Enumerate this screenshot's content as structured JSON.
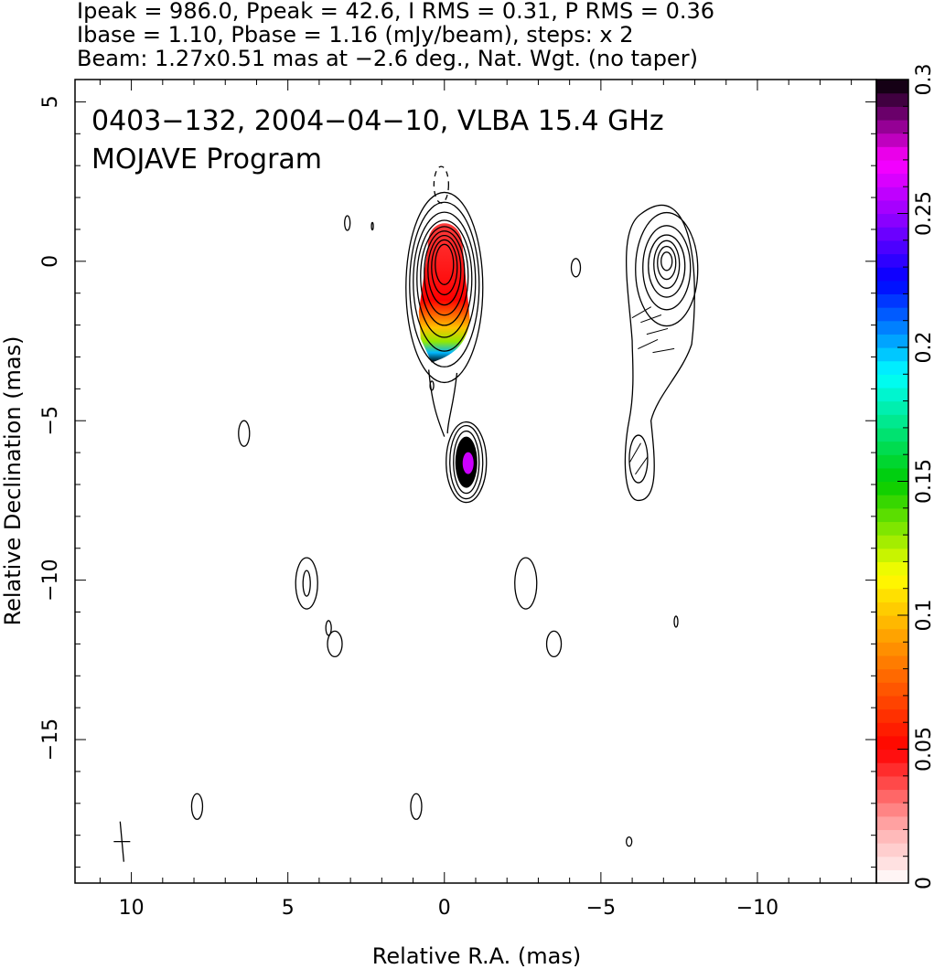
{
  "header": {
    "line1": "Ipeak = 986.0, Ppeak = 42.6, I RMS = 0.31, P RMS = 0.36",
    "line2": "Ibase = 1.10, Pbase = 1.16 (mJy/beam), steps: x 2",
    "line3": "Beam: 1.27x0.51 mas at −2.6 deg., Nat. Wgt. (no taper)"
  },
  "chart_data": [
    {
      "type": "heatmap",
      "panel": "total intensity contours with fractional polarization colour",
      "title_line1": "0403−132, 2004−04−10, VLBA 15.4 GHz",
      "title_line2": "MOJAVE Program",
      "xlabel": "Relative R.A. (mas)",
      "ylabel": "Relative Declination (mas)",
      "xlim": [
        11.8,
        -13.8
      ],
      "ylim": [
        -19.5,
        5.7
      ],
      "x_ticks": [
        10,
        5,
        0,
        -5,
        -10
      ],
      "x_tick_labels": [
        "10",
        "5",
        "0",
        "−5",
        "−10"
      ],
      "y_ticks": [
        5,
        0,
        -5,
        -10,
        -15
      ],
      "y_tick_labels": [
        "5",
        "0",
        "−5",
        "−10",
        "−15"
      ],
      "core_colour_components": [
        {
          "x": 0.0,
          "y": -0.7,
          "value_range": [
            0.02,
            0.12
          ]
        },
        {
          "x": -0.7,
          "y": -6.3,
          "value_range": [
            0.22,
            0.3
          ]
        }
      ],
      "contour_sources": [
        {
          "x": 0.0,
          "y": -1.0
        },
        {
          "x": -7.1,
          "y": -1.5
        },
        {
          "x": -0.7,
          "y": -6.3
        },
        {
          "x": -6.2,
          "y": -6.2
        },
        {
          "x": 4.4,
          "y": -10.1
        },
        {
          "x": -2.6,
          "y": -10.1
        }
      ],
      "beam": {
        "major": 1.27,
        "minor": 0.51,
        "pa_deg": -2.6
      }
    },
    {
      "type": "heatmap",
      "panel": "colour scale",
      "colorbar_range": [
        0,
        0.3
      ],
      "colorbar_ticks": [
        0,
        0.05,
        0.1,
        0.15,
        0.2,
        0.25,
        0.3
      ],
      "colorbar_tick_labels": [
        "0",
        "0.05",
        "0.1",
        "0.15",
        "0.2",
        "0.25",
        "0.3"
      ]
    }
  ],
  "colors": {
    "low": "#ffffff",
    "red": "#ff0000",
    "orange": "#ff9900",
    "yellow": "#ffff00",
    "green": "#00cc00",
    "cyan": "#00ffff",
    "blue": "#0000ff",
    "violet": "#9900ff",
    "magenta": "#ff00ff",
    "black": "#000000"
  }
}
